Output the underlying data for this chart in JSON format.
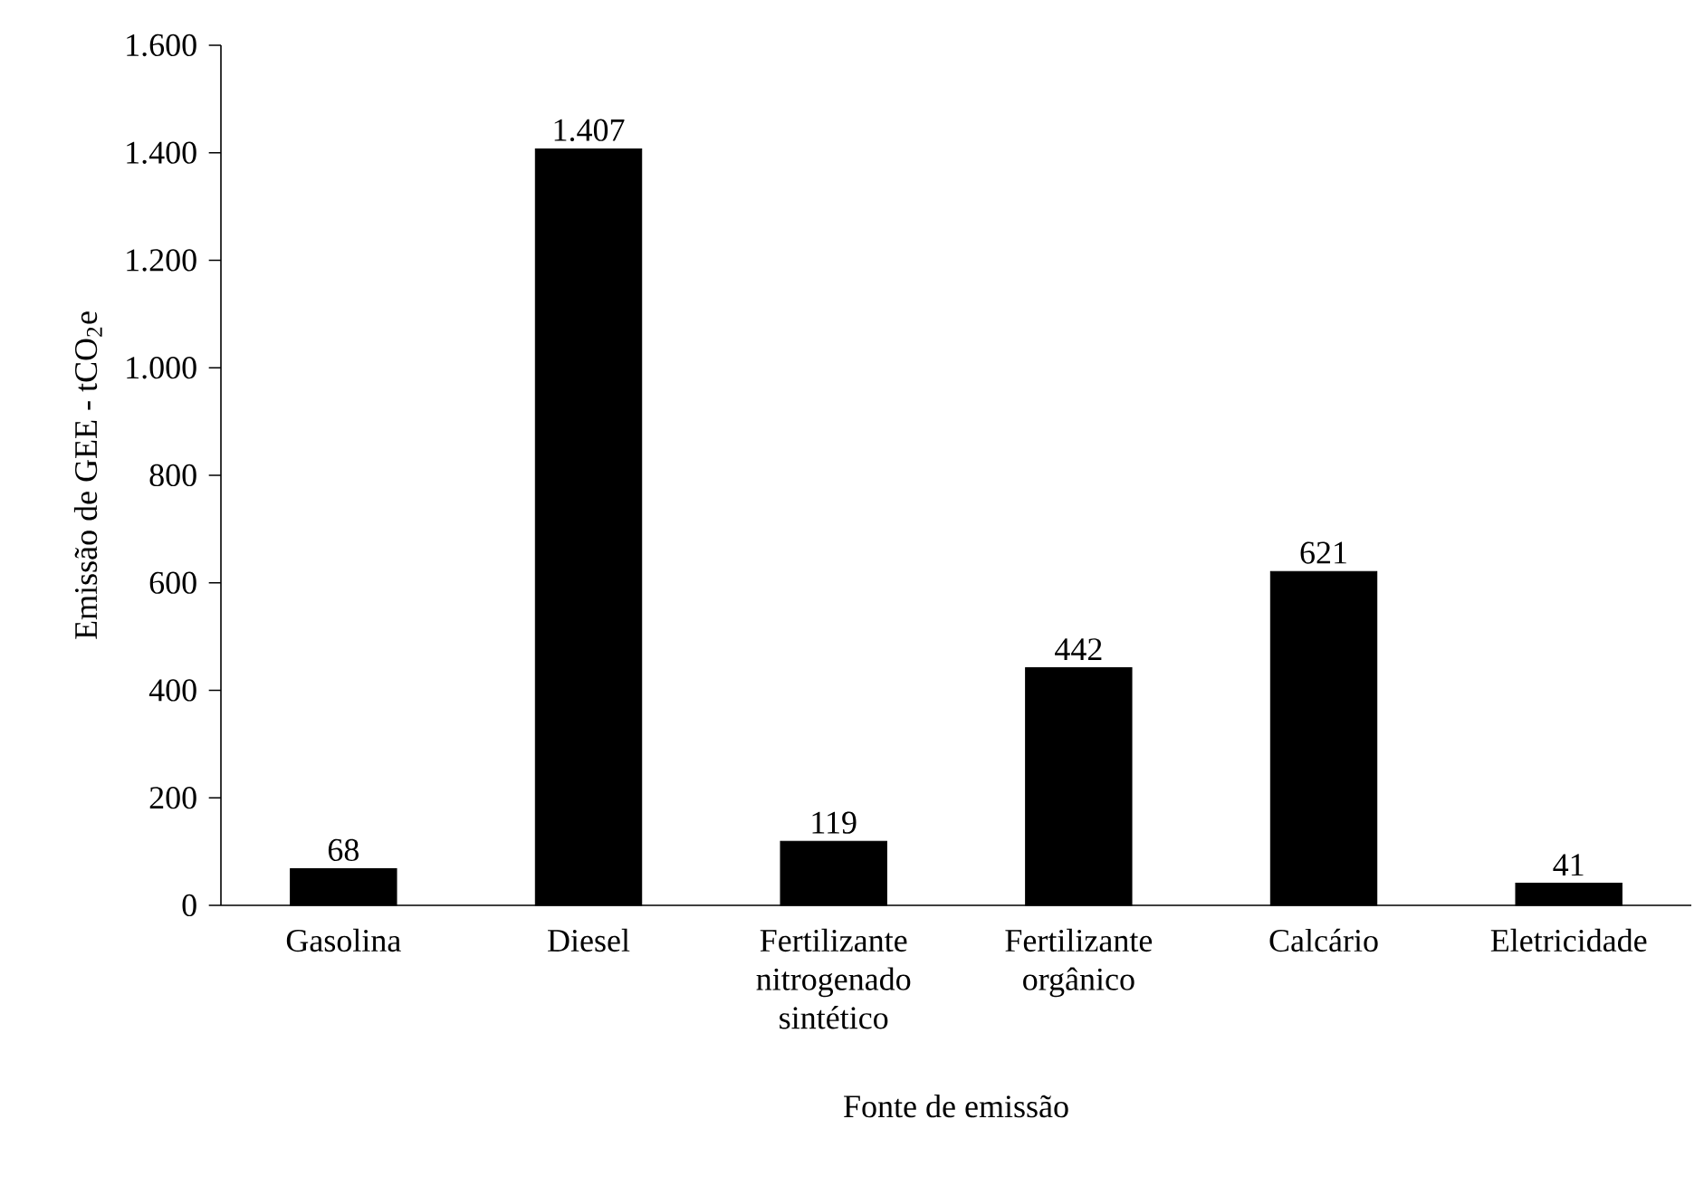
{
  "chart_data": {
    "type": "bar",
    "xlabel": "Fonte de emissão",
    "ylabel": "Emissão de GEE - tCO$_{2}$e",
    "categories": [
      "Gasolina",
      "Diesel",
      "Fertilizante nitrogenado sintético",
      "Fertilizante orgânico",
      "Calcário",
      "Eletricidade"
    ],
    "values": [
      68,
      1407,
      119,
      442,
      621,
      41
    ],
    "value_labels": [
      "68",
      "1.407",
      "119",
      "442",
      "621",
      "41"
    ],
    "color": "#000000",
    "ylim": [
      0,
      1600
    ],
    "yticks": [
      0,
      200,
      400,
      600,
      800,
      {
        "value": 1000,
        "label": "1.000"
      },
      {
        "value": 1200,
        "label": "1.200"
      },
      {
        "value": 1400,
        "label": "1.400"
      },
      {
        "value": 1600,
        "label": "1.600"
      }
    ],
    "grid": false
  }
}
